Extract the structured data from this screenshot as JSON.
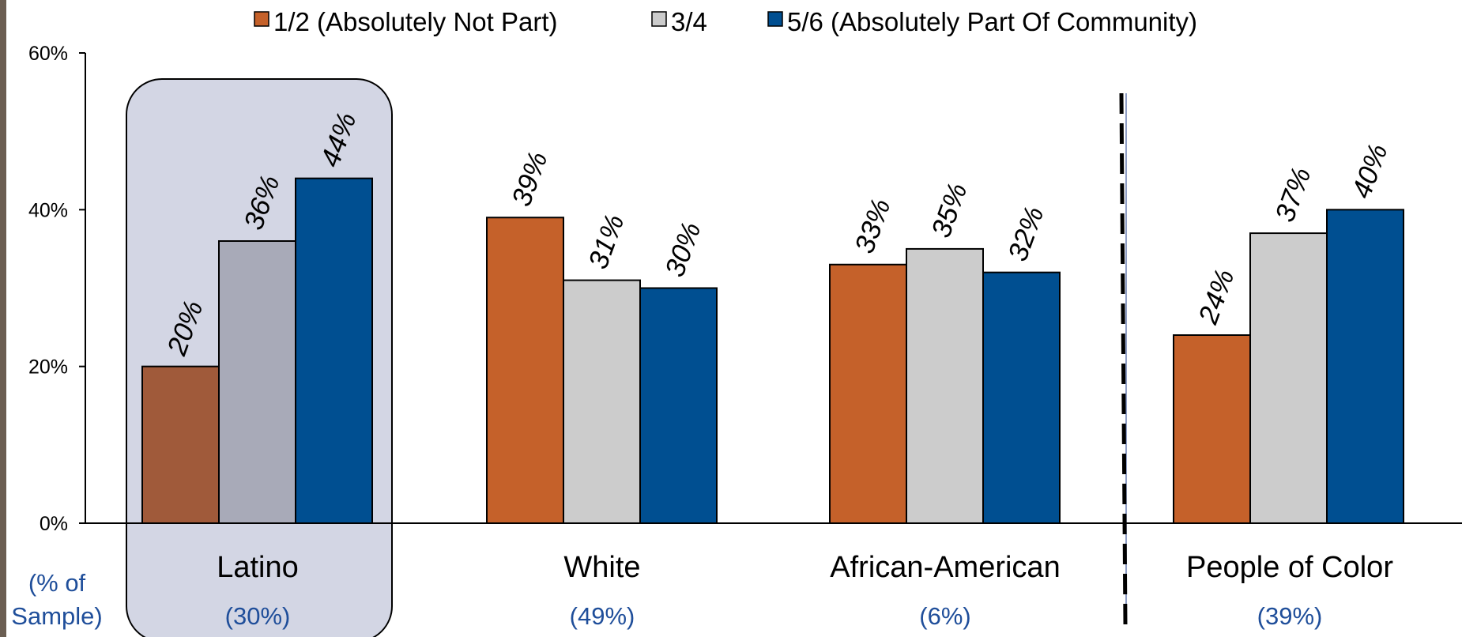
{
  "chart_data": {
    "type": "bar",
    "ylim": [
      0,
      60
    ],
    "yticks": [
      "0%",
      "20%",
      "40%",
      "60%"
    ],
    "legend": [
      {
        "name": "1/2 (Absolutely Not Part)",
        "color": "#c5612a"
      },
      {
        "name": "3/4",
        "color": "#cccccc"
      },
      {
        "name": "5/6 (Absolutely Part Of Community)",
        "color": "#004f91"
      }
    ],
    "sample_label": "(% of Sample)",
    "groups": [
      {
        "name": "Latino",
        "share": "(30%)",
        "values": [
          20,
          36,
          44
        ],
        "labels": [
          "20%",
          "36%",
          "44%"
        ],
        "highlighted": true,
        "colors": [
          "#a05a3a",
          "#a8aab8",
          "#004f91"
        ]
      },
      {
        "name": "White",
        "share": "(49%)",
        "values": [
          39,
          31,
          30
        ],
        "labels": [
          "39%",
          "31%",
          "30%"
        ],
        "highlighted": false,
        "colors": [
          "#c5612a",
          "#cccccc",
          "#004f91"
        ]
      },
      {
        "name": "African-American",
        "share": "(6%)",
        "values": [
          33,
          35,
          32
        ],
        "labels": [
          "33%",
          "35%",
          "32%"
        ],
        "highlighted": false,
        "colors": [
          "#c5612a",
          "#cccccc",
          "#004f91"
        ]
      },
      {
        "name": "People of Color",
        "share": "(39%)",
        "values": [
          24,
          37,
          40
        ],
        "labels": [
          "24%",
          "37%",
          "40%"
        ],
        "highlighted": false,
        "colors": [
          "#c5612a",
          "#cccccc",
          "#004f91"
        ]
      }
    ],
    "highlight_color": "#d3d6e4",
    "divider": "dashed vertical line between African-American and People of Color"
  }
}
